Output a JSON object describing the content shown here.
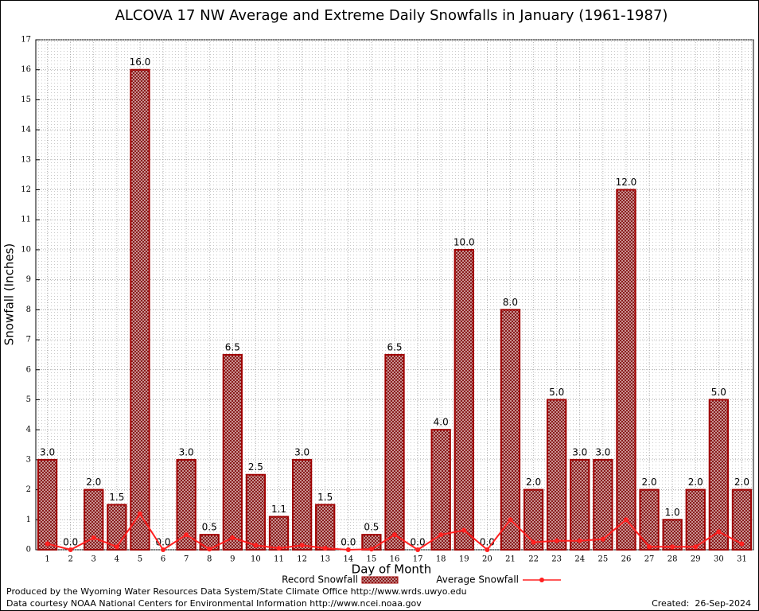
{
  "chart_data": {
    "type": "bar",
    "title": "ALCOVA 17 NW Average and Extreme Daily Snowfalls in January (1961-1987)",
    "x_label": "Day of Month",
    "y_label": "Snowfall (Inches)",
    "categories": [
      "1",
      "2",
      "3",
      "4",
      "5",
      "6",
      "7",
      "8",
      "9",
      "10",
      "11",
      "12",
      "13",
      "14",
      "15",
      "16",
      "17",
      "18",
      "19",
      "20",
      "21",
      "22",
      "23",
      "24",
      "25",
      "26",
      "27",
      "28",
      "29",
      "30",
      "31"
    ],
    "series": [
      {
        "name": "Record Snowfall",
        "type": "bar",
        "color": "#a00000",
        "values": [
          3.0,
          0.0,
          2.0,
          1.5,
          16.0,
          0.0,
          3.0,
          0.5,
          6.5,
          2.5,
          1.1,
          3.0,
          1.5,
          0.0,
          0.5,
          6.5,
          0.0,
          4.0,
          10.0,
          0.0,
          8.0,
          2.0,
          5.0,
          3.0,
          3.0,
          12.0,
          2.0,
          1.0,
          2.0,
          5.0,
          2.0
        ],
        "value_labels": [
          "3.0",
          "0.0",
          "2.0",
          "1.5",
          "16.0",
          "0.0",
          "3.0",
          "0.5",
          "6.5",
          "2.5",
          "1.1",
          "3.0",
          "1.5",
          "0.0",
          "0.5",
          "6.5",
          "0.0",
          "4.0",
          "10.0",
          "0.0",
          "8.0",
          "2.0",
          "5.0",
          "3.0",
          "3.0",
          "12.0",
          "2.0",
          "1.0",
          "2.0",
          "5.0",
          "2.0"
        ]
      },
      {
        "name": "Average Snowfall",
        "type": "line",
        "color": "#ff2020",
        "values": [
          0.2,
          0.0,
          0.4,
          0.1,
          1.2,
          0.0,
          0.5,
          0.02,
          0.4,
          0.15,
          0.05,
          0.15,
          0.05,
          0.0,
          0.02,
          0.5,
          0.0,
          0.5,
          0.65,
          0.0,
          1.0,
          0.25,
          0.3,
          0.3,
          0.35,
          1.0,
          0.1,
          0.1,
          0.1,
          0.6,
          0.2
        ]
      }
    ],
    "ylim": [
      0,
      17
    ],
    "yticks": [
      0,
      1,
      2,
      3,
      4,
      5,
      6,
      7,
      8,
      9,
      10,
      11,
      12,
      13,
      14,
      15,
      16,
      17
    ],
    "grid": true,
    "footer_left": [
      "Produced by the Wyoming Water Resources Data System/State Climate Office http://www.wrds.uwyo.edu",
      "Data courtesy NOAA National Centers for Environmental Information http://www.ncei.noaa.gov"
    ],
    "footer_right": "Created:  26-Sep-2024"
  }
}
